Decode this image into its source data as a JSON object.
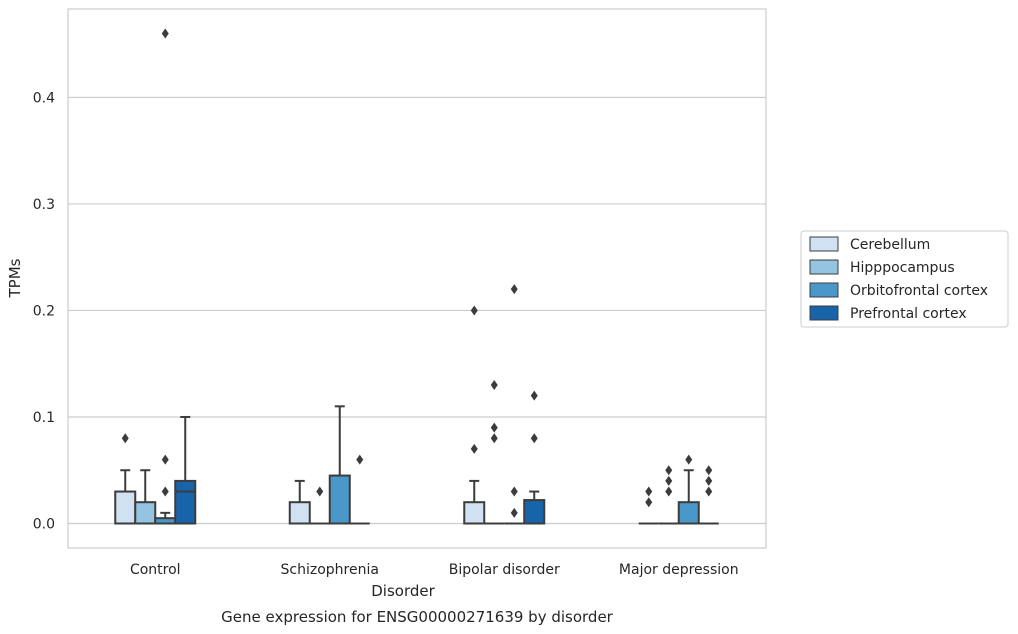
{
  "chart_data": {
    "type": "box",
    "caption": "Gene expression for ENSG00000271639 by disorder",
    "xlabel": "Disorder",
    "ylabel": "TPMs",
    "ylim": [
      -0.023,
      0.483
    ],
    "yticks": [
      0.0,
      0.1,
      0.2,
      0.3,
      0.4
    ],
    "ytick_labels": [
      "0.0",
      "0.1",
      "0.2",
      "0.3",
      "0.4"
    ],
    "categories": [
      "Control",
      "Schizophrenia",
      "Bipolar disorder",
      "Major depression"
    ],
    "grid": "horizontal",
    "legend_position": "right",
    "series": [
      {
        "name": "Cerebellum",
        "color": "#d0e1f2",
        "boxes": [
          {
            "q1": 0.0,
            "median": 0.0,
            "q3": 0.03,
            "whislo": 0.0,
            "whishi": 0.05,
            "fliers": [
              0.08
            ]
          },
          {
            "q1": 0.0,
            "median": 0.0,
            "q3": 0.02,
            "whislo": 0.0,
            "whishi": 0.04,
            "fliers": []
          },
          {
            "q1": 0.0,
            "median": 0.0,
            "q3": 0.02,
            "whislo": 0.0,
            "whishi": 0.04,
            "fliers": [
              0.07,
              0.2
            ]
          },
          {
            "q1": 0.0,
            "median": 0.0,
            "q3": 0.0,
            "whislo": 0.0,
            "whishi": 0.0,
            "fliers": [
              0.02,
              0.03
            ]
          }
        ]
      },
      {
        "name": "Hipppocampus",
        "color": "#94c4df",
        "boxes": [
          {
            "q1": 0.0,
            "median": 0.0,
            "q3": 0.02,
            "whislo": 0.0,
            "whishi": 0.05,
            "fliers": []
          },
          {
            "q1": 0.0,
            "median": 0.0,
            "q3": 0.0,
            "whislo": 0.0,
            "whishi": 0.0,
            "fliers": [
              0.03
            ]
          },
          {
            "q1": 0.0,
            "median": 0.0,
            "q3": 0.0,
            "whislo": 0.0,
            "whishi": 0.0,
            "fliers": [
              0.08,
              0.09,
              0.13
            ]
          },
          {
            "q1": 0.0,
            "median": 0.0,
            "q3": 0.0,
            "whislo": 0.0,
            "whishi": 0.0,
            "fliers": [
              0.03,
              0.04,
              0.05
            ]
          }
        ]
      },
      {
        "name": "Orbitofrontal cortex",
        "color": "#4a98c9",
        "boxes": [
          {
            "q1": 0.0,
            "median": 0.0,
            "q3": 0.005,
            "whislo": 0.0,
            "whishi": 0.01,
            "fliers": [
              0.03,
              0.06,
              0.46
            ]
          },
          {
            "q1": 0.0,
            "median": 0.0,
            "q3": 0.045,
            "whislo": 0.0,
            "whishi": 0.11,
            "fliers": []
          },
          {
            "q1": 0.0,
            "median": 0.0,
            "q3": 0.0,
            "whislo": 0.0,
            "whishi": 0.0,
            "fliers": [
              0.01,
              0.03,
              0.22
            ]
          },
          {
            "q1": 0.0,
            "median": 0.0,
            "q3": 0.02,
            "whislo": 0.0,
            "whishi": 0.05,
            "fliers": [
              0.06
            ]
          }
        ]
      },
      {
        "name": "Prefrontal cortex",
        "color": "#1764ab",
        "boxes": [
          {
            "q1": 0.0,
            "median": 0.03,
            "q3": 0.04,
            "whislo": 0.0,
            "whishi": 0.1,
            "fliers": []
          },
          {
            "q1": 0.0,
            "median": 0.0,
            "q3": 0.0,
            "whislo": 0.0,
            "whishi": 0.0,
            "fliers": [
              0.06
            ]
          },
          {
            "q1": 0.0,
            "median": 0.0,
            "q3": 0.022,
            "whislo": 0.0,
            "whishi": 0.03,
            "fliers": [
              0.08,
              0.12
            ]
          },
          {
            "q1": 0.0,
            "median": 0.0,
            "q3": 0.0,
            "whislo": 0.0,
            "whishi": 0.0,
            "fliers": [
              0.03,
              0.04,
              0.05
            ]
          }
        ]
      }
    ]
  }
}
